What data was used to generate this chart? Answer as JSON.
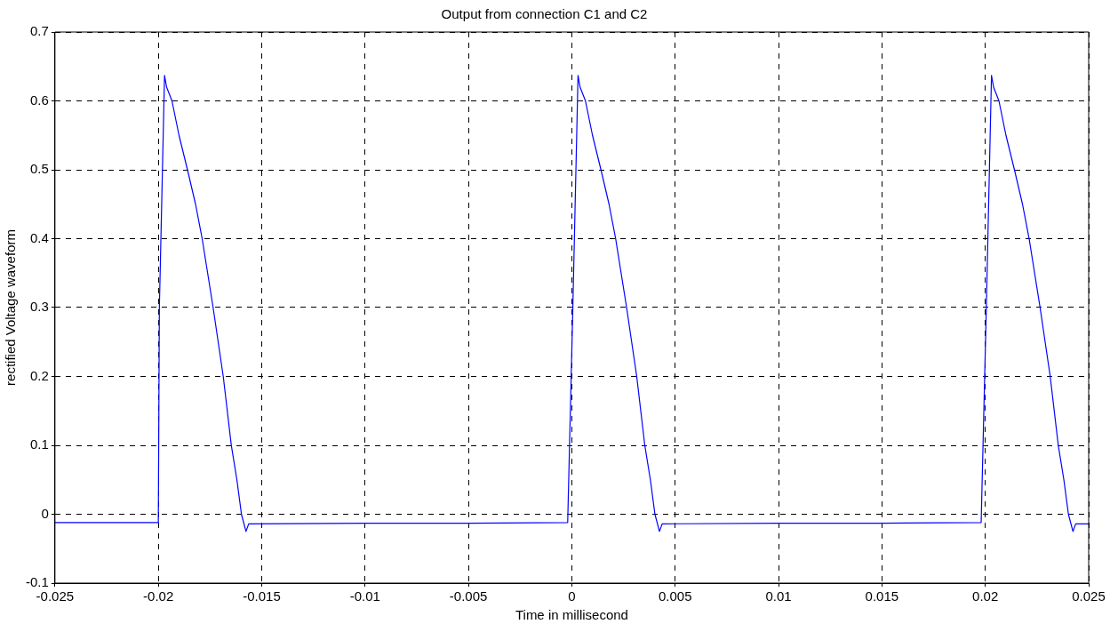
{
  "chart_data": {
    "type": "line",
    "title": "Output from connection C1 and C2",
    "xlabel": "Time in millisecond",
    "ylabel": "rectified Voltage waveform",
    "series": [
      {
        "color": "#0000ff",
        "x": [
          -0.025,
          -0.02,
          -0.01995,
          -0.0197,
          -0.0196,
          -0.01934,
          -0.019,
          -0.01859,
          -0.0182,
          -0.01788,
          -0.01735,
          -0.01686,
          -0.01647,
          -0.0162,
          -0.01598,
          -0.01576,
          -0.01563,
          -0.01,
          -0.005,
          -0.0002,
          5e-05,
          0.0003,
          0.0004,
          0.00066,
          0.001,
          0.00141,
          0.0018,
          0.00212,
          0.00265,
          0.00314,
          0.00353,
          0.0038,
          0.00402,
          0.00424,
          0.00437,
          0.01,
          0.015,
          0.0198,
          0.02005,
          0.0203,
          0.0204,
          0.02066,
          0.021,
          0.02141,
          0.0218,
          0.02212,
          0.02265,
          0.02314,
          0.02353,
          0.0238,
          0.02402,
          0.02424,
          0.02437,
          0.025
        ],
        "values": [
          -0.012,
          -0.012,
          0.3,
          0.637,
          0.62,
          0.6,
          0.55,
          0.5,
          0.45,
          0.4,
          0.3,
          0.2,
          0.1,
          0.05,
          0.0,
          -0.025,
          -0.014,
          -0.013,
          -0.013,
          -0.012,
          0.3,
          0.637,
          0.62,
          0.6,
          0.55,
          0.5,
          0.45,
          0.4,
          0.3,
          0.2,
          0.1,
          0.05,
          0.0,
          -0.025,
          -0.014,
          -0.013,
          -0.013,
          -0.012,
          0.3,
          0.637,
          0.62,
          0.6,
          0.55,
          0.5,
          0.45,
          0.4,
          0.3,
          0.2,
          0.1,
          0.05,
          0.0,
          -0.025,
          -0.014,
          -0.014
        ]
      }
    ],
    "xlim": [
      -0.025,
      0.025
    ],
    "xticks": [
      -0.025,
      -0.02,
      -0.015,
      -0.01,
      -0.005,
      0,
      0.005,
      0.01,
      0.015,
      0.02,
      0.025
    ],
    "ylim": [
      -0.1,
      0.7
    ],
    "yticks": [
      -0.1,
      0,
      0.1,
      0.2,
      0.3,
      0.4,
      0.5,
      0.6,
      0.7
    ],
    "grid": true,
    "legend": false,
    "marker": "none",
    "line_style": "solid"
  }
}
